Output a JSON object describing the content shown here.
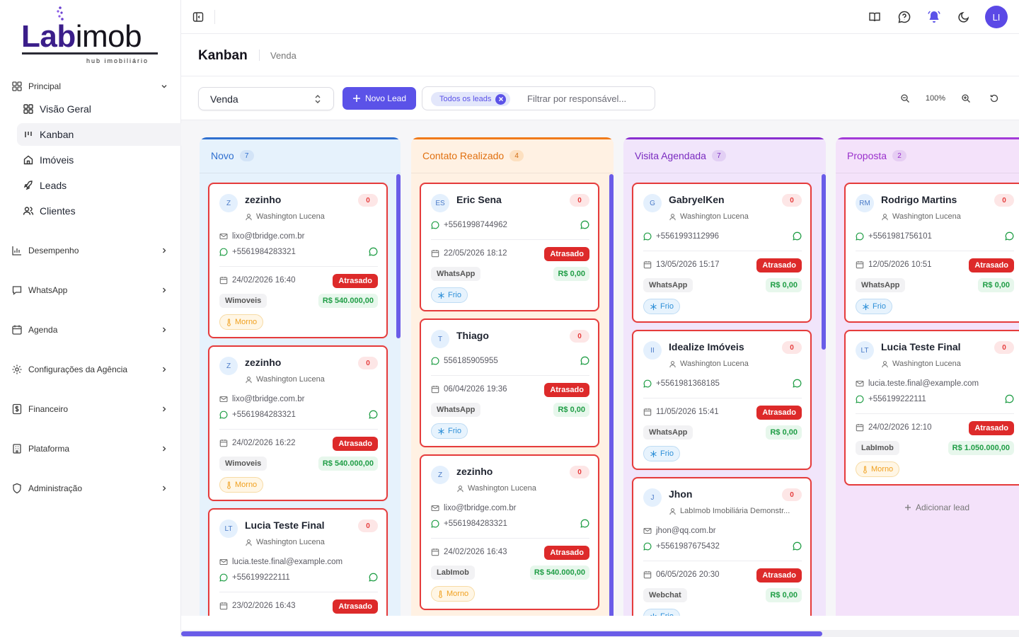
{
  "brand": {
    "logo_part1": "Lab",
    "logo_part2": "imob",
    "tagline": "hub imobiliário"
  },
  "sidebar": {
    "principal_label": "Principal",
    "principal_items": [
      {
        "label": "Visão Geral",
        "icon": "grid-icon"
      },
      {
        "label": "Kanban",
        "icon": "kanban-icon",
        "active": true
      },
      {
        "label": "Imóveis",
        "icon": "house-icon"
      },
      {
        "label": "Leads",
        "icon": "rocket-icon"
      },
      {
        "label": "Clientes",
        "icon": "users-icon"
      }
    ],
    "sections": [
      {
        "label": "Desempenho",
        "icon": "bar-chart-icon"
      },
      {
        "label": "WhatsApp",
        "icon": "chat-icon"
      },
      {
        "label": "Agenda",
        "icon": "calendar-icon"
      },
      {
        "label": "Configurações da Agência",
        "icon": "gear-icon"
      },
      {
        "label": "Financeiro",
        "icon": "dollar-icon"
      },
      {
        "label": "Plataforma",
        "icon": "building-icon"
      },
      {
        "label": "Administração",
        "icon": "shield-icon"
      }
    ]
  },
  "topbar": {
    "avatar_initials": "LI"
  },
  "header": {
    "title": "Kanban",
    "subtitle": "Venda"
  },
  "toolbar": {
    "pipeline_select": "Venda",
    "new_lead_label": "Novo Lead",
    "filter_chip": "Todos os leads",
    "filter_placeholder": "Filtrar por responsável...",
    "zoom": "100%"
  },
  "colors": {
    "accent": "#5b52e8",
    "late": "#dd2a2a",
    "value_green": "#1f9d45"
  },
  "columns": [
    {
      "title": "Novo",
      "count": "7",
      "theme": "blue",
      "cards": [
        {
          "initials": "Z",
          "name": "zezinho",
          "badge": "0",
          "responsible": "Washington Lucena",
          "email": "lixo@tbridge.com.br",
          "phone": "+5561984283321",
          "date": "24/02/2026 16:40",
          "status": "Atrasado",
          "source": "Wimoveis",
          "value": "R$ 540.000,00",
          "temp": "Morno"
        },
        {
          "initials": "Z",
          "name": "zezinho",
          "badge": "0",
          "responsible": "Washington Lucena",
          "email": "lixo@tbridge.com.br",
          "phone": "+5561984283321",
          "date": "24/02/2026 16:22",
          "status": "Atrasado",
          "source": "Wimoveis",
          "value": "R$ 540.000,00",
          "temp": "Morno"
        },
        {
          "initials": "LT",
          "name": "Lucia Teste Final",
          "badge": "0",
          "responsible": "Washington Lucena",
          "email": "lucia.teste.final@example.com",
          "phone": "+556199222111",
          "date": "23/02/2026 16:43",
          "status": "Atrasado"
        }
      ]
    },
    {
      "title": "Contato Realizado",
      "count": "4",
      "theme": "orange",
      "cards": [
        {
          "initials": "ES",
          "name": "Eric Sena",
          "badge": "0",
          "phone": "+5561998744962",
          "date": "22/05/2026 18:12",
          "status": "Atrasado",
          "source": "WhatsApp",
          "value": "R$ 0,00",
          "temp": "Frio"
        },
        {
          "initials": "T",
          "name": "Thiago",
          "badge": "0",
          "phone": "556185905955",
          "date": "06/04/2026 19:36",
          "status": "Atrasado",
          "source": "WhatsApp",
          "value": "R$ 0,00",
          "temp": "Frio"
        },
        {
          "initials": "Z",
          "name": "zezinho",
          "badge": "0",
          "responsible": "Washington Lucena",
          "email": "lixo@tbridge.com.br",
          "phone": "+5561984283321",
          "date": "24/02/2026 16:43",
          "status": "Atrasado",
          "source": "LabImob",
          "value": "R$ 540.000,00",
          "temp": "Morno"
        }
      ]
    },
    {
      "title": "Visita Agendada",
      "count": "7",
      "theme": "purple",
      "cards": [
        {
          "initials": "G",
          "name": "GabryelKen",
          "badge": "0",
          "responsible": "Washington Lucena",
          "phone": "+5561993112996",
          "date": "13/05/2026 15:17",
          "status": "Atrasado",
          "source": "WhatsApp",
          "value": "R$ 0,00",
          "temp": "Frio"
        },
        {
          "initials": "II",
          "name": "Idealize Imóveis",
          "badge": "0",
          "responsible": "Washington Lucena",
          "phone": "+5561981368185",
          "date": "11/05/2026 15:41",
          "status": "Atrasado",
          "source": "WhatsApp",
          "value": "R$ 0,00",
          "temp": "Frio"
        },
        {
          "initials": "J",
          "name": "Jhon",
          "badge": "0",
          "responsible": "LabImob Imobiliária Demonstr...",
          "email": "jhon@qq.com.br",
          "phone": "+5561987675432",
          "date": "06/05/2026 20:30",
          "status": "Atrasado",
          "source": "Webchat",
          "value": "R$ 0,00",
          "temp": "Frio"
        }
      ]
    },
    {
      "title": "Proposta",
      "count": "2",
      "theme": "pink",
      "cards": [
        {
          "initials": "RM",
          "name": "Rodrigo Martins",
          "badge": "0",
          "responsible": "Washington Lucena",
          "phone": "+5561981756101",
          "date": "12/05/2026 10:51",
          "status": "Atrasado",
          "source": "WhatsApp",
          "value": "R$ 0,00",
          "temp": "Frio"
        },
        {
          "initials": "LT",
          "name": "Lucia Teste Final",
          "badge": "0",
          "responsible": "Washington Lucena",
          "email": "lucia.teste.final@example.com",
          "phone": "+556199222111",
          "date": "24/02/2026 12:10",
          "status": "Atrasado",
          "source": "LabImob",
          "value": "R$ 1.050.000,00",
          "temp": "Morno"
        }
      ],
      "add_label": "Adicionar lead"
    }
  ]
}
